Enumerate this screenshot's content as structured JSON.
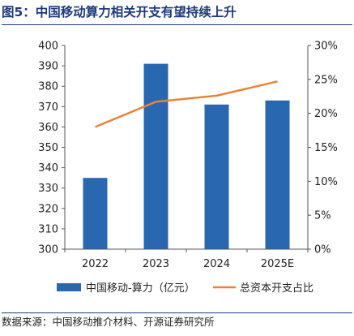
{
  "figure": {
    "title": "图5：中国移动算力相关开支有望持续上升",
    "source": "数据来源：中国移动推介材料、开源证券研究所"
  },
  "colors": {
    "bar": "#2a67b1",
    "line": "#e8843a",
    "title": "#1f3a7a",
    "axis": "#555555"
  },
  "chart_data": {
    "type": "bar+line",
    "categories": [
      "2022",
      "2023",
      "2024",
      "2025E"
    ],
    "series": [
      {
        "name": "中国移动-算力（亿元）",
        "type": "bar",
        "axis": "left",
        "values": [
          335,
          391,
          371,
          373
        ]
      },
      {
        "name": "总资本开支占比",
        "type": "line",
        "axis": "right",
        "values": [
          0.18,
          0.217,
          0.226,
          0.247
        ]
      }
    ],
    "y_left": {
      "min": 300,
      "max": 400,
      "step": 10
    },
    "y_right": {
      "min": 0,
      "max": 0.3,
      "step": 0.05,
      "format": "percent"
    },
    "grid": false,
    "legend": "bottom"
  }
}
